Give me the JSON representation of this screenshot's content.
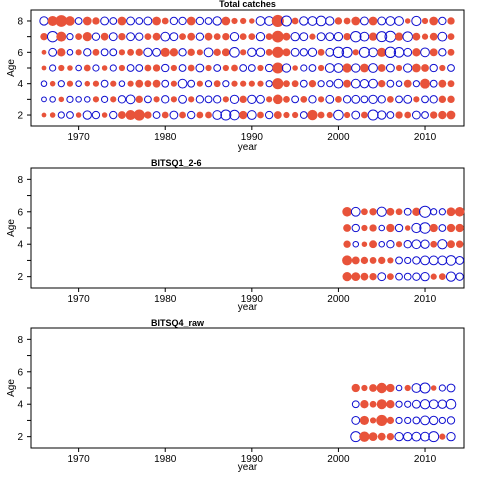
{
  "colors": {
    "positive": "#E8533A",
    "negative": "#1010D0"
  },
  "chart_data": [
    {
      "type": "scatter",
      "variant": "bubble-residuals",
      "title": "Total catches",
      "xlabel": "year",
      "ylabel": "Age",
      "xlim": [
        1964.5,
        2014.5
      ],
      "ylim": [
        1.3,
        8.7
      ],
      "xticks": [
        1970,
        1980,
        1990,
        2000,
        2010
      ],
      "yticks": [
        2,
        4,
        6,
        8
      ],
      "x_start": 1966,
      "x_end": 2013,
      "ages": [
        2,
        3,
        4,
        5,
        6,
        7,
        8
      ],
      "values": {
        "8": [
          -0.9,
          1.3,
          1.8,
          1.2,
          -0.6,
          1.0,
          0.7,
          -0.8,
          -0.6,
          1.0,
          -0.8,
          -0.6,
          -0.8,
          1.0,
          0.6,
          -0.7,
          -0.7,
          1.0,
          -0.7,
          -0.6,
          -0.9,
          1.0,
          0.5,
          0.5,
          0.4,
          -1.0,
          -1.0,
          1.9,
          -1.3,
          0.6,
          -0.9,
          -1.0,
          -1.2,
          -0.9,
          0.7,
          0.6,
          1.0,
          -0.8,
          1.0,
          -0.8,
          -1.0,
          -1.0,
          0.4,
          -1.1,
          0.5,
          1.0,
          -0.7,
          0.7
        ],
        "7": [
          0.7,
          -1.4,
          1.3,
          -0.5,
          0.6,
          1.1,
          -0.7,
          0.8,
          -0.8,
          0.7,
          -0.8,
          -0.7,
          0.6,
          0.8,
          -1.0,
          -0.8,
          0.6,
          0.8,
          -0.7,
          0.8,
          0.6,
          0.7,
          -0.9,
          0.6,
          0.6,
          -0.9,
          0.6,
          1.8,
          0.8,
          -0.9,
          -0.8,
          0.5,
          -0.8,
          -0.8,
          -0.9,
          0.7,
          -1.4,
          -1.0,
          0.9,
          -1.3,
          -1.5,
          0.9,
          -1.2,
          0.8,
          0.5,
          0.8,
          -1.0,
          0.6
        ],
        "6": [
          0.3,
          -0.8,
          0.9,
          -0.4,
          0.5,
          -0.7,
          0.6,
          -0.6,
          -0.6,
          0.5,
          0.6,
          0.7,
          -0.9,
          -0.8,
          1.1,
          0.9,
          -0.7,
          0.7,
          0.5,
          -1.0,
          0.7,
          0.8,
          -1.2,
          0.5,
          -0.9,
          -0.9,
          0.6,
          1.6,
          0.8,
          -0.8,
          -0.7,
          -0.9,
          0.6,
          -0.8,
          -1.4,
          -1.3,
          0.5,
          -1.3,
          -1.0,
          1.1,
          -1.4,
          -1.2,
          -0.8,
          0.9,
          -1.0,
          0.8,
          -0.7,
          0.6
        ],
        "5": [
          0.3,
          -0.5,
          0.5,
          0.4,
          -0.4,
          0.6,
          -0.5,
          0.4,
          -0.5,
          0.5,
          -0.6,
          -0.6,
          0.6,
          0.7,
          -0.7,
          0.5,
          -0.6,
          0.6,
          -0.8,
          0.5,
          -0.6,
          0.5,
          0.6,
          -0.6,
          -0.6,
          0.5,
          -0.7,
          1.6,
          -0.9,
          0.4,
          -0.5,
          -0.6,
          0.5,
          -1.0,
          -1.0,
          1.1,
          -0.9,
          1.0,
          -1.0,
          0.8,
          -0.8,
          0.5,
          -0.9,
          1.0,
          0.8,
          -0.7,
          0.5,
          -0.6
        ],
        "4": [
          -0.4,
          0.4,
          -0.5,
          0.5,
          -0.4,
          0.4,
          0.5,
          -0.6,
          0.5,
          -0.4,
          0.5,
          0.8,
          0.6,
          0.8,
          -0.6,
          0.5,
          -1.0,
          -0.6,
          0.5,
          -0.5,
          0.6,
          -0.5,
          0.5,
          0.5,
          0.5,
          0.5,
          -0.5,
          1.6,
          0.6,
          0.6,
          -0.6,
          0.7,
          -0.5,
          -0.5,
          -1.0,
          0.8,
          -1.0,
          -0.9,
          -1.0,
          0.7,
          -0.6,
          -0.4,
          0.8,
          -0.5,
          1.3,
          -0.6,
          0.8,
          0.6
        ],
        "3": [
          -0.3,
          -0.4,
          0.4,
          -0.5,
          -0.4,
          -0.4,
          0.5,
          -0.5,
          0.5,
          -0.7,
          -1.0,
          0.7,
          -0.6,
          0.5,
          -0.7,
          0.5,
          -0.8,
          0.5,
          -0.7,
          -0.6,
          -0.7,
          0.5,
          -0.9,
          0.7,
          -0.9,
          -0.8,
          0.5,
          1.2,
          0.6,
          -0.6,
          0.6,
          -0.7,
          0.5,
          -0.8,
          0.6,
          -0.7,
          -0.8,
          -0.6,
          -0.9,
          -0.7,
          0.6,
          -0.6,
          -0.8,
          0.5,
          -0.6,
          -0.7,
          0.7,
          0.7
        ],
        "2": [
          0.3,
          0.4,
          -0.5,
          -0.6,
          0.4,
          -0.9,
          -0.7,
          0.4,
          -0.7,
          0.8,
          1.3,
          1.6,
          0.7,
          -0.6,
          0.6,
          -0.8,
          0.6,
          -0.7,
          0.6,
          0.6,
          -1.0,
          -1.3,
          -1.2,
          0.9,
          -1.0,
          0.6,
          -0.7,
          0.8,
          0.5,
          0.5,
          -0.6,
          1.4,
          0.6,
          0.5,
          -1.2,
          0.5,
          -0.8,
          0.6,
          -1.3,
          -0.9,
          -0.6,
          0.7,
          0.6,
          -0.8,
          -0.6,
          0.7,
          0.9,
          1.0
        ]
      }
    },
    {
      "type": "scatter",
      "variant": "bubble-residuals",
      "title": "BITSQ1_2-6",
      "xlabel": "year",
      "ylabel": "Age",
      "xlim": [
        1964.5,
        2014.5
      ],
      "ylim": [
        1.3,
        8.7
      ],
      "xticks": [
        1970,
        1980,
        1990,
        2000,
        2010
      ],
      "yticks": [
        2,
        4,
        6,
        8
      ],
      "x_start": 2001,
      "x_end": 2014,
      "ages": [
        2,
        3,
        4,
        5,
        6
      ],
      "values": {
        "6": [
          1.2,
          -1.0,
          0.6,
          0.7,
          -1.1,
          0.8,
          0.6,
          -0.6,
          0.9,
          -1.6,
          -0.5,
          -0.5,
          1.0,
          1.2
        ],
        "5": [
          0.8,
          -0.7,
          0.5,
          0.7,
          -0.4,
          0.9,
          -0.7,
          0.4,
          -1.1,
          -1.4,
          0.9,
          -0.6,
          0.9,
          0.9
        ],
        "4": [
          0.7,
          -0.4,
          0.4,
          0.8,
          -0.4,
          -0.7,
          0.5,
          -0.7,
          -1.0,
          -0.9,
          0.6,
          -1.1,
          0.8,
          0.7
        ],
        "3": [
          1.3,
          0.8,
          0.7,
          0.6,
          0.7,
          0.5,
          -0.6,
          -0.5,
          -0.7,
          -1.0,
          -1.0,
          -1.0,
          -1.2,
          -0.8
        ],
        "2": [
          1.1,
          1.0,
          0.8,
          0.7,
          -0.8,
          0.6,
          -0.6,
          -0.6,
          -0.7,
          -0.9,
          0.5,
          0.6,
          -1.1,
          -0.7
        ]
      }
    },
    {
      "type": "scatter",
      "variant": "bubble-residuals",
      "title": "BITSQ4_raw",
      "xlabel": "year",
      "ylabel": "Age",
      "xlim": [
        1964.5,
        2014.5
      ],
      "ylim": [
        1.3,
        8.7
      ],
      "xticks": [
        1970,
        1980,
        1990,
        2000,
        2010
      ],
      "yticks": [
        2,
        4,
        6,
        8
      ],
      "x_start": 2002,
      "x_end": 2013,
      "ages": [
        2,
        3,
        4,
        5
      ],
      "values": {
        "5": [
          0.9,
          0.5,
          0.8,
          1.4,
          0.9,
          -0.4,
          0.5,
          -1.0,
          -1.3,
          0.4,
          -0.5,
          -0.8
        ],
        "4": [
          -0.6,
          0.9,
          0.6,
          1.3,
          0.9,
          -0.5,
          -0.5,
          -0.8,
          -1.1,
          -1.0,
          -0.9,
          -1.2
        ],
        "3": [
          -0.8,
          1.1,
          0.5,
          1.6,
          0.7,
          -0.5,
          -0.5,
          -0.6,
          -1.0,
          -0.9,
          -0.5,
          -0.7
        ],
        "2": [
          -1.3,
          1.4,
          1.0,
          0.8,
          0.7,
          -0.9,
          -0.9,
          -1.0,
          -1.0,
          -1.3,
          0.5,
          -0.9
        ]
      }
    }
  ]
}
